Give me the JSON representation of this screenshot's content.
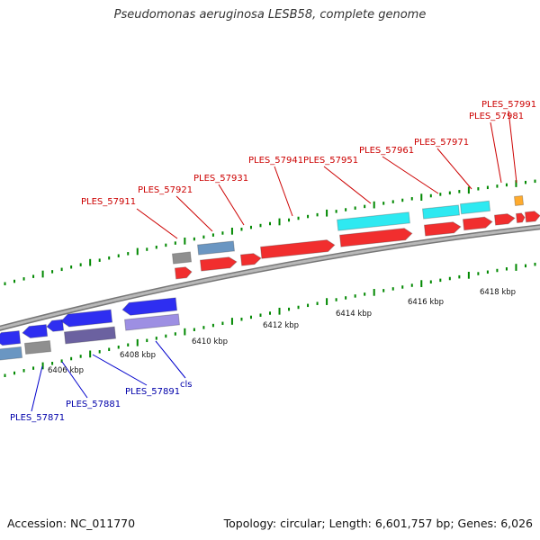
{
  "title": "Pseudomonas aeruginosa LESB58, complete genome",
  "footer": {
    "accession": "Accession: NC_011770",
    "summary": "Topology: circular; Length: 6,601,757 bp; Genes: 6,026"
  },
  "colors": {
    "forward_gene": "#ee0000",
    "reverse_gene": "#0000ee",
    "cyan_feature": "#00e5ee",
    "steelblue_feature": "#4a7fb5",
    "gray_feature": "#777777",
    "darkslate_feature": "#4b3f8c",
    "lavender_feature": "#8877dd",
    "orange_feature": "#ff9900",
    "tick": "#008800",
    "backbone": "#999999"
  },
  "axis_labels": [
    "6406 kbp",
    "6408 kbp",
    "6410 kbp",
    "6412 kbp",
    "6414 kbp",
    "6416 kbp",
    "6418 kbp"
  ],
  "top_labels": [
    "PLES_57911",
    "PLES_57921",
    "PLES_57931",
    "PLES_57941",
    "PLES_57951",
    "PLES_57961",
    "PLES_57971",
    "PLES_57981",
    "PLES_57991"
  ],
  "bottom_labels": [
    "PLES_57871",
    "PLES_57881",
    "PLES_57891",
    "cls"
  ]
}
